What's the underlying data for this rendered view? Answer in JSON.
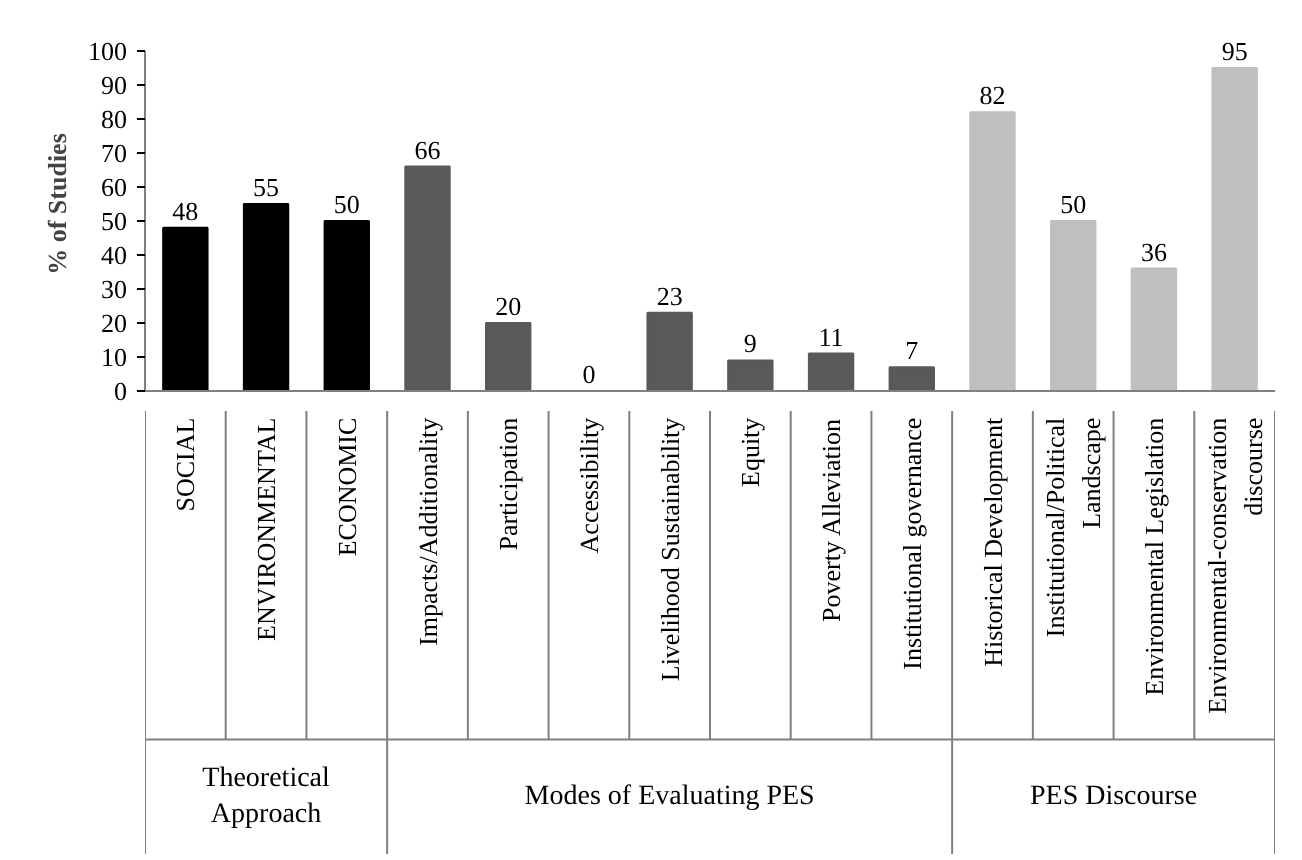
{
  "chart_data": {
    "type": "bar",
    "ylabel": "% of Studies",
    "categories": [
      "SOCIAL",
      "ENVIRONMENTAL",
      "ECONOMIC",
      "Impacts/Additionality",
      "Participation",
      "Accessibility",
      "Livelihood Sustainability",
      "Equity",
      "Poverty Alleviation",
      "Institutional governance",
      "Historical Development",
      "Institutional/Political Landscape",
      "Environmental Legislation",
      "Environmental-conservation discourse"
    ],
    "values": [
      48,
      55,
      50,
      66,
      20,
      0,
      23,
      9,
      11,
      7,
      82,
      50,
      36,
      95
    ],
    "colors": [
      "#000000",
      "#000000",
      "#000000",
      "#595959",
      "#595959",
      "#595959",
      "#595959",
      "#595959",
      "#595959",
      "#595959",
      "#bfbfbf",
      "#bfbfbf",
      "#bfbfbf",
      "#bfbfbf"
    ],
    "ylim": [
      0,
      100
    ],
    "yticks": [
      0,
      10,
      20,
      30,
      40,
      50,
      60,
      70,
      80,
      90,
      100
    ],
    "data_labels": true,
    "grid": false,
    "annotations": [
      "Theoretical Approach",
      "Modes of Evaluating PES",
      "PES Discourse"
    ]
  }
}
